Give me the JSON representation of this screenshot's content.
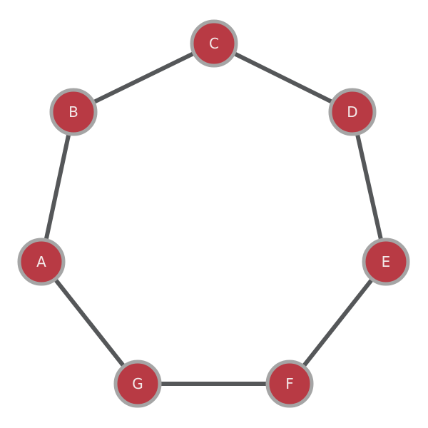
{
  "graph": {
    "colors": {
      "node_fill": "#b83a44",
      "node_stroke": "#a5a5a5",
      "edge": "#555759",
      "label": "#f3eaea"
    },
    "nodes": [
      {
        "id": "A",
        "label": "A"
      },
      {
        "id": "B",
        "label": "B"
      },
      {
        "id": "C",
        "label": "C"
      },
      {
        "id": "D",
        "label": "D"
      },
      {
        "id": "E",
        "label": "E"
      },
      {
        "id": "F",
        "label": "F"
      },
      {
        "id": "G",
        "label": "G"
      }
    ],
    "edges": [
      {
        "from": "A",
        "to": "B"
      },
      {
        "from": "B",
        "to": "C"
      },
      {
        "from": "C",
        "to": "D"
      },
      {
        "from": "D",
        "to": "E"
      },
      {
        "from": "E",
        "to": "F"
      },
      {
        "from": "F",
        "to": "G"
      },
      {
        "from": "G",
        "to": "A"
      }
    ]
  }
}
